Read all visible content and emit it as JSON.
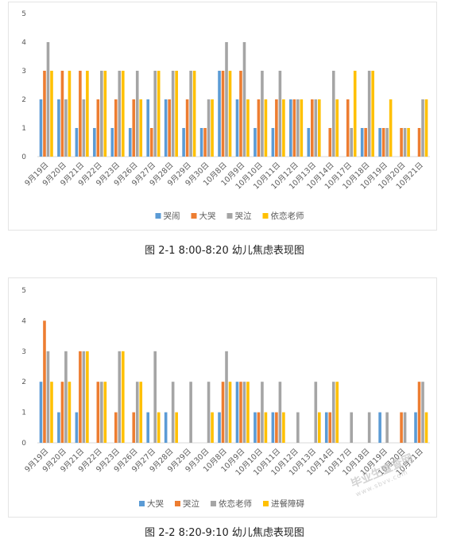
{
  "charts": [
    {
      "caption": "图 2-1  8:00-8:20 幼儿焦虑表现图",
      "chart_data": {
        "type": "bar",
        "categories": [
          "9月19日",
          "9月20日",
          "9月21日",
          "9月22日",
          "9月23日",
          "9月26日",
          "9月27日",
          "9月28日",
          "9月29日",
          "9月30日",
          "10月8日",
          "10月9日",
          "10月10日",
          "10月11日",
          "10月12日",
          "10月13日",
          "10月14日",
          "10月17日",
          "10月18日",
          "10月19日",
          "10月20日",
          "10月21日"
        ],
        "series": [
          {
            "name": "哭闹",
            "color": "#5b9bd5",
            "values": [
              2,
              2,
              1,
              1,
              1,
              1,
              2,
              2,
              1,
              1,
              3,
              2,
              1,
              1,
              2,
              1,
              0,
              0,
              1,
              1,
              0,
              0
            ]
          },
          {
            "name": "大哭",
            "color": "#ed7d31",
            "values": [
              3,
              3,
              3,
              2,
              2,
              2,
              1,
              2,
              2,
              1,
              3,
              3,
              2,
              2,
              2,
              2,
              1,
              2,
              1,
              1,
              1,
              1
            ]
          },
          {
            "name": "哭泣",
            "color": "#a5a5a5",
            "values": [
              4,
              2,
              2,
              3,
              3,
              3,
              3,
              3,
              3,
              2,
              4,
              4,
              3,
              3,
              2,
              2,
              3,
              1,
              3,
              1,
              1,
              2
            ]
          },
          {
            "name": "依恋老师",
            "color": "#ffc000",
            "values": [
              3,
              3,
              3,
              3,
              3,
              2,
              3,
              3,
              3,
              2,
              3,
              2,
              2,
              2,
              2,
              2,
              2,
              3,
              3,
              2,
              1,
              2
            ]
          }
        ],
        "ylim": [
          0,
          5
        ],
        "yticks": [
          0,
          1,
          2,
          3,
          4,
          5
        ],
        "legend": "bottom",
        "grid": false
      }
    },
    {
      "caption": "图 2-2  8:20-9:10 幼儿焦虑表现图",
      "chart_data": {
        "type": "bar",
        "categories": [
          "9月19日",
          "9月20日",
          "9月21日",
          "9月22日",
          "9月23日",
          "9月26日",
          "9月27日",
          "9月28日",
          "9月29日",
          "9月30日",
          "10月8日",
          "10月9日",
          "10月10日",
          "10月11日",
          "10月12日",
          "10月13日",
          "10月14日",
          "10月17日",
          "10月18日",
          "10月19日",
          "10月20日",
          "10月21日"
        ],
        "series": [
          {
            "name": "大哭",
            "color": "#5b9bd5",
            "values": [
              2,
              1,
              1,
              0,
              0,
              0,
              1,
              1,
              0,
              0,
              1,
              2,
              1,
              1,
              0,
              0,
              1,
              0,
              0,
              1,
              0,
              1
            ]
          },
          {
            "name": "哭泣",
            "color": "#ed7d31",
            "values": [
              4,
              2,
              3,
              2,
              1,
              1,
              0,
              0,
              0,
              0,
              2,
              2,
              1,
              1,
              0,
              0,
              1,
              0,
              0,
              0,
              1,
              2
            ]
          },
          {
            "name": "依恋老师",
            "color": "#a5a5a5",
            "values": [
              3,
              3,
              3,
              2,
              3,
              2,
              3,
              2,
              2,
              2,
              3,
              2,
              2,
              2,
              1,
              2,
              2,
              1,
              1,
              1,
              1,
              2
            ]
          },
          {
            "name": "进餐障碍",
            "color": "#ffc000",
            "values": [
              2,
              2,
              3,
              2,
              3,
              2,
              1,
              1,
              0,
              1,
              2,
              2,
              1,
              1,
              0,
              1,
              2,
              0,
              0,
              0,
              0,
              1
            ]
          }
        ],
        "ylim": [
          0,
          5
        ],
        "yticks": [
          0,
          1,
          2,
          3,
          4,
          5
        ],
        "legend": "bottom",
        "grid": false
      }
    }
  ],
  "watermark": {
    "text": "毕业生查查网",
    "sub": "www.sbvv.com"
  }
}
